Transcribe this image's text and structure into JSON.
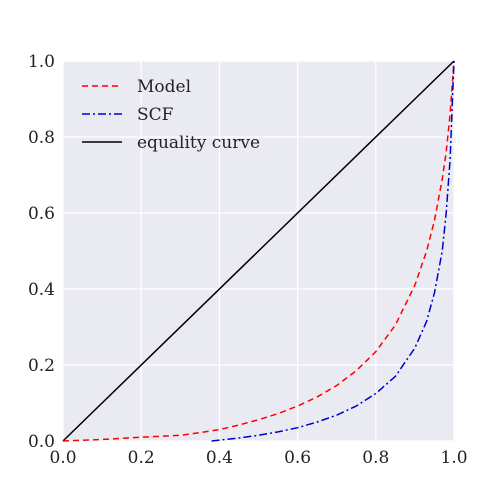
{
  "chart_data": {
    "type": "line",
    "title": "",
    "xlabel": "",
    "ylabel": "",
    "xlim": [
      0,
      1
    ],
    "ylim": [
      0,
      1
    ],
    "grid": true,
    "legend_position": "top-left",
    "x_ticks": [
      "0.0",
      "0.2",
      "0.4",
      "0.6",
      "0.8",
      "1.0"
    ],
    "y_ticks": [
      "0.0",
      "0.2",
      "0.4",
      "0.6",
      "0.8",
      "1.0"
    ],
    "colors": {
      "plot_background": "#eaeaf2",
      "grid": "#ffffff",
      "model": "#ff0000",
      "scf": "#0000cc",
      "equality": "#000000"
    },
    "series": [
      {
        "name": "Model",
        "color": "#ff0000",
        "style": "dashed",
        "x": [
          0.0,
          0.1,
          0.2,
          0.3,
          0.35,
          0.4,
          0.45,
          0.5,
          0.55,
          0.6,
          0.65,
          0.7,
          0.75,
          0.8,
          0.85,
          0.9,
          0.93,
          0.95,
          0.97,
          0.98,
          0.99,
          1.0
        ],
        "y": [
          0.0,
          0.004,
          0.01,
          0.015,
          0.022,
          0.03,
          0.042,
          0.056,
          0.072,
          0.092,
          0.116,
          0.146,
          0.185,
          0.235,
          0.305,
          0.41,
          0.5,
          0.58,
          0.69,
          0.76,
          0.86,
          1.0
        ]
      },
      {
        "name": "SCF",
        "color": "#0000cc",
        "style": "dashdot",
        "x": [
          0.38,
          0.45,
          0.5,
          0.55,
          0.6,
          0.65,
          0.7,
          0.75,
          0.8,
          0.85,
          0.9,
          0.93,
          0.95,
          0.97,
          0.98,
          0.99,
          1.0
        ],
        "y": [
          0.0,
          0.008,
          0.015,
          0.024,
          0.035,
          0.05,
          0.068,
          0.092,
          0.125,
          0.17,
          0.245,
          0.315,
          0.39,
          0.5,
          0.6,
          0.74,
          1.0
        ]
      },
      {
        "name": "equality curve",
        "color": "#000000",
        "style": "solid",
        "x": [
          0.0,
          1.0
        ],
        "y": [
          0.0,
          1.0
        ]
      }
    ]
  }
}
